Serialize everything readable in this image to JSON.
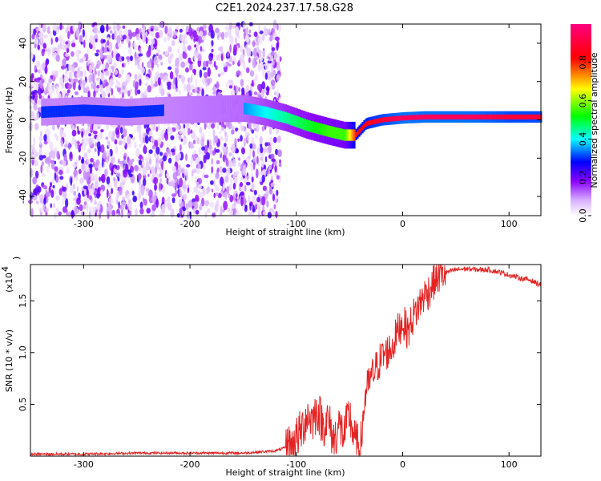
{
  "chart_data": [
    {
      "type": "heatmap",
      "title": "C2E1.2024.237.17.58.G28",
      "xlabel": "Height of straight line (km)",
      "ylabel": "Frequency (Hz)",
      "xlim": [
        -350,
        130
      ],
      "ylim": [
        -50,
        50
      ],
      "xticks": [
        -300,
        -200,
        -100,
        0,
        100
      ],
      "xtick_labels": [
        "-300",
        "-200",
        "-100",
        "0",
        "100"
      ],
      "yticks": [
        -40,
        -20,
        0,
        20,
        40
      ],
      "ytick_labels": [
        "-40",
        "-20",
        "0",
        "20",
        "40"
      ],
      "colorbar": {
        "label": "Normalized spectral amplitude",
        "range": [
          0,
          1
        ],
        "ticks": [
          0.0,
          0.2,
          0.4,
          0.6,
          0.8
        ],
        "tick_labels": [
          "0.0",
          "0.2",
          "0.4",
          "0.6",
          "0.8"
        ],
        "colors": [
          "#ffffff",
          "#8a00ff",
          "#0000ff",
          "#00ffff",
          "#00ff00",
          "#ffff00",
          "#ff0000",
          "#ff0080"
        ]
      },
      "ridge": {
        "x": [
          -340,
          -300,
          -260,
          -225,
          -150,
          -130,
          -110,
          -90,
          -70,
          -55,
          -45,
          -35,
          -20,
          0,
          20,
          60,
          100,
          130
        ],
        "y": [
          4,
          5,
          4,
          5,
          6,
          4,
          1,
          -3,
          -6,
          -8,
          -8,
          -2,
          0,
          1,
          1.5,
          1.5,
          1.5,
          1.5
        ],
        "amplitude": [
          0.3,
          0.3,
          0.3,
          0.3,
          0.35,
          0.4,
          0.45,
          0.5,
          0.55,
          0.55,
          0.8,
          0.85,
          0.9,
          0.95,
          0.95,
          0.95,
          0.9,
          0.9
        ]
      },
      "noise_region_x": [
        -350,
        -115
      ]
    },
    {
      "type": "line",
      "xlabel": "Height of straight line (km)",
      "ylabel": "SNR (10 * v/v)",
      "yunit": "(x10",
      "yunit_exp": "4",
      "xlim": [
        -350,
        130
      ],
      "ylim": [
        0,
        1.85
      ],
      "xticks": [
        -300,
        -200,
        -100,
        0,
        100
      ],
      "xtick_labels": [
        "-300",
        "-200",
        "-100",
        "0",
        "100"
      ],
      "yticks": [
        0.5,
        1.0,
        1.5
      ],
      "ytick_labels": [
        "0.5",
        "1.0",
        "1.5"
      ],
      "series_color": "#e52222",
      "x": [
        -350,
        -300,
        -250,
        -200,
        -150,
        -120,
        -105,
        -95,
        -90,
        -85,
        -80,
        -75,
        -70,
        -65,
        -60,
        -55,
        -50,
        -45,
        -40,
        -35,
        -30,
        -25,
        -20,
        -15,
        -10,
        -5,
        0,
        5,
        10,
        15,
        20,
        25,
        30,
        35,
        40,
        50,
        60,
        70,
        80,
        90,
        100,
        110,
        120,
        130
      ],
      "y": [
        0.02,
        0.02,
        0.03,
        0.03,
        0.03,
        0.05,
        0.1,
        0.25,
        0.4,
        0.35,
        0.45,
        0.3,
        0.35,
        0.15,
        0.3,
        0.2,
        0.4,
        0.15,
        0.05,
        0.6,
        0.75,
        0.85,
        0.95,
        1.0,
        1.05,
        1.2,
        1.3,
        1.2,
        1.35,
        1.45,
        1.55,
        1.6,
        1.7,
        1.75,
        1.77,
        1.8,
        1.81,
        1.8,
        1.8,
        1.78,
        1.75,
        1.72,
        1.7,
        1.65
      ]
    }
  ]
}
